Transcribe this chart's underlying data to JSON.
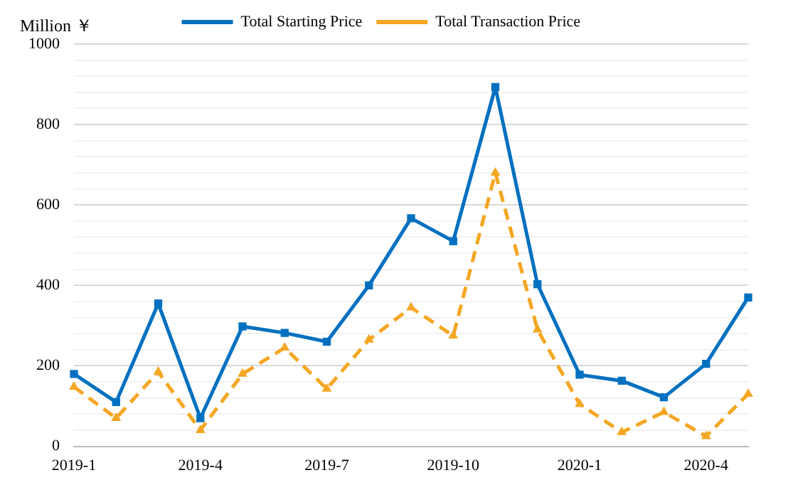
{
  "chart_data": {
    "type": "line",
    "ylabel": "Million ￥",
    "categories": [
      "2019-1",
      null,
      null,
      "2019-4",
      null,
      null,
      "2019-7",
      null,
      null,
      "2019-10",
      null,
      null,
      "2020-1",
      null,
      null,
      "2020-4",
      null
    ],
    "series": [
      {
        "name": "Total Starting Price",
        "color": "#0070c0",
        "marker": "square",
        "line_style": "solid",
        "values": [
          180,
          110,
          355,
          70,
          298,
          282,
          260,
          400,
          567,
          510,
          893,
          403,
          178,
          163,
          122,
          205,
          370
        ]
      },
      {
        "name": "Total Transaction Price",
        "color": "#f5a623",
        "marker": "triangle",
        "line_style": "dashed",
        "values": [
          148,
          70,
          185,
          40,
          180,
          245,
          143,
          265,
          345,
          275,
          680,
          290,
          105,
          35,
          85,
          25,
          130
        ]
      }
    ],
    "ylim": [
      0,
      1000
    ],
    "yticks": [
      0,
      {
        "value": 40,
        "label": null
      },
      {
        "value": 80,
        "label": null
      },
      {
        "value": 120,
        "label": null
      },
      {
        "value": 160,
        "label": null
      },
      200,
      {
        "value": 240,
        "label": null
      },
      {
        "value": 280,
        "label": null
      },
      {
        "value": 320,
        "label": null
      },
      {
        "value": 360,
        "label": null
      },
      400,
      {
        "value": 440,
        "label": null
      },
      {
        "value": 480,
        "label": null
      },
      {
        "value": 520,
        "label": null
      },
      {
        "value": 560,
        "label": null
      },
      600,
      {
        "value": 640,
        "label": null
      },
      {
        "value": 680,
        "label": null
      },
      {
        "value": 720,
        "label": null
      },
      {
        "value": 760,
        "label": null
      },
      800,
      {
        "value": 840,
        "label": null
      },
      {
        "value": 880,
        "label": null
      },
      {
        "value": 920,
        "label": null
      },
      {
        "value": 960,
        "label": null
      },
      1000
    ],
    "grid": "y",
    "legend": "top"
  }
}
